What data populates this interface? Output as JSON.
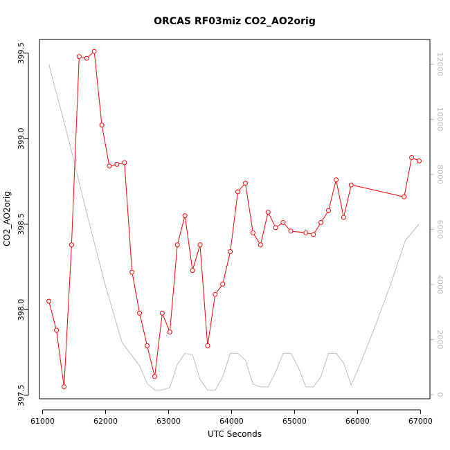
{
  "chart_data": {
    "type": "line",
    "title": "ORCAS RF03miz CO2_AO2orig",
    "xlabel": "UTC Seconds",
    "ylabel": "CO2_AO2orig",
    "ylabel_right": "",
    "xlim": [
      60950,
      67150
    ],
    "ylim": [
      397.48,
      399.58
    ],
    "ylim_right": [
      -150,
      12900
    ],
    "x_ticks": [
      61000,
      62000,
      63000,
      64000,
      65000,
      66000,
      67000
    ],
    "y_ticks": [
      397.5,
      398.0,
      398.5,
      399.0,
      399.5
    ],
    "y_ticks_right": [
      0,
      2000,
      4000,
      6000,
      8000,
      10000,
      12000
    ],
    "grid": false,
    "legend": "none",
    "colors": {
      "primary": "#ff0000",
      "secondary": "#bebebe"
    },
    "series": [
      {
        "axis": "left",
        "style": "line-points",
        "x": [
          61100,
          61220,
          61340,
          61460,
          61580,
          61700,
          61820,
          61940,
          62060,
          62180,
          62300,
          62420,
          62540,
          62660,
          62780,
          62900,
          63020,
          63140,
          63260,
          63380,
          63500,
          63620,
          63740,
          63860,
          63980,
          64100,
          64220,
          64340,
          64460,
          64580,
          64700,
          64820,
          64940,
          65180,
          65300,
          65420,
          65540,
          65660,
          65780,
          65900,
          66740,
          66860,
          66980
        ],
        "values": [
          398.05,
          397.88,
          397.55,
          398.38,
          399.48,
          399.47,
          399.51,
          399.08,
          398.84,
          398.85,
          398.86,
          398.22,
          397.98,
          397.79,
          397.61,
          397.98,
          397.87,
          398.38,
          398.55,
          398.23,
          398.38,
          397.79,
          398.09,
          398.15,
          398.34,
          398.69,
          398.74,
          398.45,
          398.38,
          398.57,
          398.48,
          398.51,
          398.46,
          398.45,
          398.44,
          398.51,
          398.58,
          398.76,
          398.54,
          398.73,
          398.66,
          398.89,
          398.87
        ]
      },
      {
        "axis": "right",
        "style": "line",
        "x": [
          61100,
          61420,
          61700,
          61980,
          62260,
          62540,
          62660,
          62780,
          62900,
          63020,
          63140,
          63260,
          63380,
          63500,
          63620,
          63740,
          63860,
          63980,
          64100,
          64220,
          64340,
          64460,
          64580,
          64700,
          64820,
          64940,
          65060,
          65180,
          65300,
          65420,
          65540,
          65660,
          65780,
          65900,
          66060,
          66300,
          66540,
          66760,
          66980
        ],
        "values": [
          12000,
          9200,
          6600,
          4100,
          1900,
          1050,
          400,
          170,
          170,
          260,
          1100,
          1500,
          1450,
          550,
          160,
          160,
          650,
          1500,
          1500,
          1250,
          380,
          280,
          280,
          820,
          1500,
          1500,
          1000,
          280,
          280,
          650,
          1500,
          1500,
          1150,
          350,
          1200,
          2600,
          4100,
          5600,
          6200
        ]
      }
    ]
  }
}
